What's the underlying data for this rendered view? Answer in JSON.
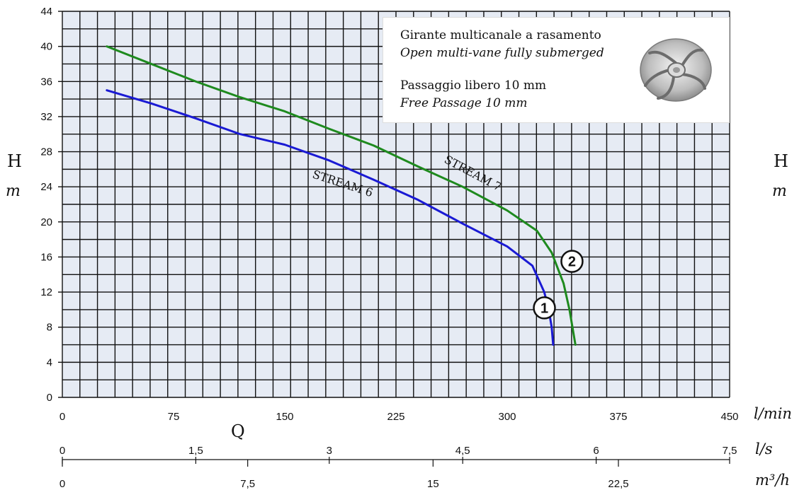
{
  "info": {
    "line1": "Girante multicanale a rasamento",
    "line2": "Open multi-vane fully submerged",
    "line3": "Passaggio libero 10 mm",
    "line4": "Free Passage 10 mm"
  },
  "chart_data": {
    "type": "line",
    "title": "",
    "ylabel_left": "H",
    "yunit_left": "m",
    "ylabel_right": "H",
    "yunit_right": "m",
    "xlabel": "Q",
    "x_units": [
      "l/min",
      "l/s",
      "m³/h"
    ],
    "xlim": [
      0,
      450
    ],
    "ylim": [
      0,
      44
    ],
    "y_ticks": [
      "0",
      "4",
      "8",
      "12",
      "16",
      "20",
      "24",
      "28",
      "32",
      "36",
      "40",
      "44"
    ],
    "x_ticks_lmin": [
      "0",
      "75",
      "150",
      "225",
      "300",
      "375",
      "450"
    ],
    "x_ticks_ls": [
      "0",
      "1,5",
      "3",
      "4,5",
      "6",
      "7,5"
    ],
    "x_ticks_m3h": [
      "0",
      "7,5",
      "15",
      "22,5"
    ],
    "grid": true,
    "series": [
      {
        "name": "STREAM 6",
        "marker": "1",
        "color": "#1a1ad4",
        "x": [
          30,
          60,
          90,
          120,
          150,
          180,
          210,
          240,
          270,
          300,
          317,
          325,
          328,
          330,
          331
        ],
        "y": [
          35,
          33.5,
          31.8,
          30,
          28.8,
          27,
          24.8,
          22.5,
          19.8,
          17.2,
          15,
          12,
          10,
          8,
          6
        ]
      },
      {
        "name": "STREAM 7",
        "marker": "2",
        "color": "#1e8a1e",
        "x": [
          30,
          60,
          90,
          120,
          150,
          180,
          210,
          240,
          270,
          300,
          320,
          330,
          338,
          342,
          346
        ],
        "y": [
          40,
          38,
          36,
          34.2,
          32.6,
          30.6,
          28.7,
          26.3,
          24,
          21.3,
          19,
          16.5,
          13,
          10,
          6
        ]
      }
    ]
  }
}
